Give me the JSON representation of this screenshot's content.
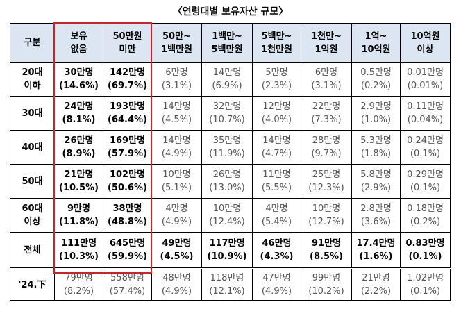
{
  "title": "〈연령대별 보유자산 규모〉",
  "table": {
    "header": [
      [
        "구분"
      ],
      [
        "보유",
        "없음"
      ],
      [
        "50만원",
        "미만"
      ],
      [
        "50만~",
        "1백만원"
      ],
      [
        "1백만~",
        "5백만원"
      ],
      [
        "5백만~",
        "1천만원"
      ],
      [
        "1천만~",
        "1억원"
      ],
      [
        "1억~",
        "10억원"
      ],
      [
        "10억원",
        "이상"
      ]
    ],
    "rows": [
      {
        "label": [
          "20대",
          "이하"
        ],
        "cells": [
          [
            "30만명",
            "(14.6%)"
          ],
          [
            "142만명",
            "(69.7%)"
          ],
          [
            "6만명",
            "(3.1%)"
          ],
          [
            "14만명",
            "(6.9%)"
          ],
          [
            "5만명",
            "(2.3%)"
          ],
          [
            "6만명",
            "(3.1%)"
          ],
          [
            "0.5만명",
            "(0.2%)"
          ],
          [
            "0.01만명",
            "(0.01%)"
          ]
        ]
      },
      {
        "label": [
          "30대"
        ],
        "cells": [
          [
            "24만명",
            "(8.1%)"
          ],
          [
            "193만명",
            "(64.4%)"
          ],
          [
            "14만명",
            "(4.5%)"
          ],
          [
            "32만명",
            "(10.7%)"
          ],
          [
            "12만명",
            "(4.0%)"
          ],
          [
            "22만명",
            "(7.3%)"
          ],
          [
            "2.9만명",
            "(1.0%)"
          ],
          [
            "0.11만명",
            "(0.04%)"
          ]
        ]
      },
      {
        "label": [
          "40대"
        ],
        "cells": [
          [
            "26만명",
            "(8.9%)"
          ],
          [
            "169만명",
            "(57.9%)"
          ],
          [
            "14만명",
            "(4.9%)"
          ],
          [
            "35만명",
            "(11.9%)"
          ],
          [
            "14만명",
            "(4.7%)"
          ],
          [
            "28만명",
            "(9.7%)"
          ],
          [
            "5.3만명",
            "(1.8%)"
          ],
          [
            "0.24만명",
            "(0.1%)"
          ]
        ]
      },
      {
        "label": [
          "50대"
        ],
        "cells": [
          [
            "21만명",
            "(10.5%)"
          ],
          [
            "102만명",
            "(50.6%)"
          ],
          [
            "10만명",
            "(5.1%)"
          ],
          [
            "26만명",
            "(13.0%)"
          ],
          [
            "11만명",
            "(5.5%)"
          ],
          [
            "25만명",
            "(12.3%)"
          ],
          [
            "5.8만명",
            "(2.9%)"
          ],
          [
            "0.29만명",
            "(0.1%)"
          ]
        ]
      },
      {
        "label": [
          "60대",
          "이상"
        ],
        "cells": [
          [
            "9만명",
            "(11.8%)"
          ],
          [
            "38만명",
            "(48.8%)"
          ],
          [
            "4만명",
            "(4.9%)"
          ],
          [
            "10만명",
            "(12.4%)"
          ],
          [
            "4만명",
            "(5.4%)"
          ],
          [
            "10만명",
            "(12.7%)"
          ],
          [
            "2.8만명",
            "(3.6%)"
          ],
          [
            "0.18만명",
            "(0.2%)"
          ]
        ]
      },
      {
        "label": [
          "전체"
        ],
        "cells": [
          [
            "111만명",
            "(10.3%)"
          ],
          [
            "645만명",
            "(59.9%)"
          ],
          [
            "49만명",
            "(4.5%)"
          ],
          [
            "117만명",
            "(10.9%)"
          ],
          [
            "46만명",
            "(4.3%)"
          ],
          [
            "91만명",
            "(8.5%)"
          ],
          [
            "17.4만명",
            "(1.6%)"
          ],
          [
            "0.83만명",
            "(0.1%)"
          ]
        ]
      },
      {
        "label": [
          "'24.下"
        ],
        "cells": [
          [
            "79만명",
            "(8.2%)"
          ],
          [
            "558만명",
            "(57.4%)"
          ],
          [
            "48만명",
            "(4.9%)"
          ],
          [
            "118만명",
            "(12.1%)"
          ],
          [
            "47만명",
            "(4.9%)"
          ],
          [
            "99만명",
            "(10.2%)"
          ],
          [
            "21만명",
            "(2.2%)"
          ],
          [
            "1.02만명",
            "(0.1%)"
          ]
        ]
      }
    ]
  }
}
